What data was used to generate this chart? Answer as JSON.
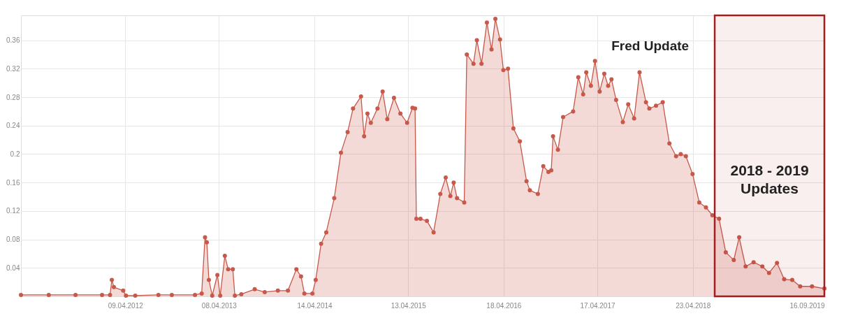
{
  "chart_data": {
    "type": "area",
    "marker": "circle",
    "grid": true,
    "xlim": [
      "2011-03-01",
      "2019-09-16"
    ],
    "ylim": [
      0,
      0.395
    ],
    "xticks": [
      {
        "value": "2012-04-09",
        "label": "09.04.2012"
      },
      {
        "value": "2013-04-08",
        "label": "08.04.2013"
      },
      {
        "value": "2014-04-14",
        "label": "14.04.2014"
      },
      {
        "value": "2015-04-13",
        "label": "13.04.2015"
      },
      {
        "value": "2016-04-18",
        "label": "18.04.2016"
      },
      {
        "value": "2017-04-17",
        "label": "17.04.2017"
      },
      {
        "value": "2018-04-23",
        "label": "23.04.2018"
      },
      {
        "value": "2019-09-16",
        "label": "16.09.2019"
      }
    ],
    "yticks": [
      0.04,
      0.08,
      0.12,
      0.16,
      0.2,
      0.24,
      0.28,
      0.32,
      0.36
    ],
    "x": [
      "2011-03-01",
      "2011-06-17",
      "2011-09-29",
      "2012-01-10",
      "2012-02-10",
      "2012-02-17",
      "2012-02-25",
      "2012-04-01",
      "2012-04-12",
      "2012-05-18",
      "2012-08-16",
      "2012-10-07",
      "2013-01-05",
      "2013-01-31",
      "2013-02-13",
      "2013-02-20",
      "2013-02-28",
      "2013-03-13",
      "2013-04-02",
      "2013-04-13",
      "2013-05-01",
      "2013-05-14",
      "2013-06-01",
      "2013-06-09",
      "2013-07-04",
      "2013-08-25",
      "2013-10-03",
      "2013-11-23",
      "2014-01-01",
      "2014-02-03",
      "2014-02-21",
      "2014-03-06",
      "2014-04-06",
      "2014-04-19",
      "2014-05-10",
      "2014-05-30",
      "2014-06-30",
      "2014-07-26",
      "2014-08-21",
      "2014-09-11",
      "2014-10-12",
      "2014-10-24",
      "2014-11-06",
      "2014-11-19",
      "2014-12-15",
      "2015-01-04",
      "2015-01-22",
      "2015-02-17",
      "2015-03-14",
      "2015-04-09",
      "2015-04-30",
      "2015-05-10",
      "2015-05-15",
      "2015-05-31",
      "2015-06-25",
      "2015-07-21",
      "2015-08-16",
      "2015-09-06",
      "2015-09-24",
      "2015-10-07",
      "2015-10-20",
      "2015-11-17",
      "2015-11-27",
      "2015-12-23",
      "2016-01-05",
      "2016-01-23",
      "2016-02-13",
      "2016-03-02",
      "2016-03-17",
      "2016-04-04",
      "2016-04-17",
      "2016-05-05",
      "2016-05-26",
      "2016-06-20",
      "2016-07-16",
      "2016-07-29",
      "2016-08-29",
      "2016-09-19",
      "2016-10-09",
      "2016-10-20",
      "2016-10-27",
      "2016-11-15",
      "2016-12-05",
      "2017-01-13",
      "2017-02-02",
      "2017-02-21",
      "2017-03-05",
      "2017-03-23",
      "2017-04-08",
      "2017-04-26",
      "2017-05-14",
      "2017-05-29",
      "2017-06-11",
      "2017-06-29",
      "2017-07-25",
      "2017-08-15",
      "2017-09-07",
      "2017-09-28",
      "2017-10-23",
      "2017-11-05",
      "2017-12-01",
      "2017-12-27",
      "2018-01-22",
      "2018-02-17",
      "2018-03-07",
      "2018-03-27",
      "2018-04-22",
      "2018-05-18",
      "2018-06-13",
      "2018-07-08",
      "2018-08-03",
      "2018-08-29",
      "2018-09-29",
      "2018-10-20",
      "2018-11-14",
      "2018-12-15",
      "2019-01-18",
      "2019-02-13",
      "2019-03-16",
      "2019-04-13",
      "2019-05-14",
      "2019-06-14",
      "2019-07-30",
      "2019-09-16"
    ],
    "series": [
      {
        "color": "#c8584a",
        "values": [
          0.002,
          0.002,
          0.002,
          0.002,
          0.002,
          0.023,
          0.013,
          0.008,
          0.001,
          0.001,
          0.002,
          0.002,
          0.002,
          0.004,
          0.083,
          0.076,
          0.023,
          0.001,
          0.03,
          0.001,
          0.057,
          0.038,
          0.038,
          0.001,
          0.003,
          0.01,
          0.006,
          0.008,
          0.008,
          0.038,
          0.028,
          0.004,
          0.004,
          0.023,
          0.074,
          0.09,
          0.138,
          0.202,
          0.231,
          0.264,
          0.281,
          0.225,
          0.257,
          0.244,
          0.264,
          0.288,
          0.249,
          0.279,
          0.257,
          0.244,
          0.265,
          0.264,
          0.109,
          0.109,
          0.106,
          0.09,
          0.144,
          0.167,
          0.141,
          0.16,
          0.138,
          0.132,
          0.34,
          0.327,
          0.36,
          0.327,
          0.385,
          0.347,
          0.39,
          0.361,
          0.318,
          0.32,
          0.236,
          0.218,
          0.162,
          0.149,
          0.144,
          0.183,
          0.175,
          0.177,
          0.225,
          0.206,
          0.252,
          0.26,
          0.308,
          0.284,
          0.315,
          0.296,
          0.331,
          0.288,
          0.313,
          0.296,
          0.305,
          0.276,
          0.245,
          0.27,
          0.25,
          0.315,
          0.273,
          0.264,
          0.268,
          0.273,
          0.215,
          0.197,
          0.2,
          0.197,
          0.172,
          0.132,
          0.125,
          0.114,
          0.109,
          0.062,
          0.051,
          0.083,
          0.042,
          0.048,
          0.042,
          0.033,
          0.047,
          0.024,
          0.023,
          0.014,
          0.014,
          0.011
        ]
      }
    ],
    "annotations": [
      "Fred Update"
    ],
    "bands": [
      {
        "axis": "x",
        "from": "2018-07-17",
        "to": "2019-09-16",
        "label": "2018 - 2019\nUpdates",
        "color": "#a31f1f"
      }
    ]
  }
}
